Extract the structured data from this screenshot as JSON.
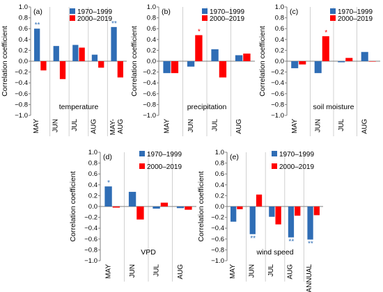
{
  "legend": {
    "series_a": "1970–1999",
    "series_b": "2000–2019"
  },
  "colors": {
    "series_a": "#2f6db5",
    "series_b": "#ff0000",
    "axis": "#7f7f7f",
    "grid": "#d0d0d0"
  },
  "shared_axis": {
    "ylabel": "Correlation coefficient",
    "yticks": [
      "−1.0",
      "−0.8",
      "−0.6",
      "−0.4",
      "−0.2",
      "0.0",
      "0.2",
      "0.4",
      "0.6",
      "0.8",
      "1.0"
    ],
    "ylim": [
      -1.0,
      1.0
    ]
  },
  "chart_data": [
    {
      "type": "bar",
      "panel_label": "(a)",
      "title": "temperature",
      "categories": [
        "MAY",
        "JUN",
        "JUL",
        "AUG",
        "MAY-\nAUG"
      ],
      "series": [
        {
          "name": "1970–1999",
          "values": [
            0.6,
            0.28,
            0.3,
            0.12,
            0.63
          ]
        },
        {
          "name": "2000–2019",
          "values": [
            -0.17,
            -0.33,
            0.25,
            -0.12,
            -0.3
          ]
        }
      ],
      "significance": [
        {
          "category": "MAY",
          "series": "1970–1999",
          "mark": "**"
        },
        {
          "category": "MAY-\nAUG",
          "series": "1970–1999",
          "mark": "**"
        }
      ],
      "legend_position": "top-right",
      "ylim": [
        -1.0,
        1.0
      ]
    },
    {
      "type": "bar",
      "panel_label": "(b)",
      "title": "precipitation",
      "categories": [
        "MAY",
        "JUN",
        "JUL",
        "AUG"
      ],
      "series": [
        {
          "name": "1970–1999",
          "values": [
            -0.22,
            -0.1,
            0.22,
            0.11
          ]
        },
        {
          "name": "2000–2019",
          "values": [
            -0.22,
            0.48,
            -0.3,
            0.14
          ]
        }
      ],
      "significance": [
        {
          "category": "JUN",
          "series": "2000–2019",
          "mark": "*"
        }
      ],
      "legend_position": "top-right",
      "ylim": [
        -1.0,
        1.0
      ]
    },
    {
      "type": "bar",
      "panel_label": "(c)",
      "title": "soil moisture",
      "categories": [
        "MAY",
        "JUN",
        "JUL",
        "AUG"
      ],
      "series": [
        {
          "name": "1970–1999",
          "values": [
            -0.13,
            -0.22,
            -0.02,
            0.17
          ]
        },
        {
          "name": "2000–2019",
          "values": [
            -0.06,
            0.46,
            0.06,
            0.0
          ]
        }
      ],
      "significance": [
        {
          "category": "JUN",
          "series": "2000–2019",
          "mark": "*"
        }
      ],
      "legend_position": "top-right",
      "ylim": [
        -1.0,
        1.0
      ]
    },
    {
      "type": "bar",
      "panel_label": "(d)",
      "title": "VPD",
      "categories": [
        "MAY",
        "JUN",
        "JUL",
        "AUG"
      ],
      "series": [
        {
          "name": "1970–1999",
          "values": [
            0.37,
            0.27,
            -0.04,
            -0.03
          ]
        },
        {
          "name": "2000–2019",
          "values": [
            -0.02,
            -0.24,
            0.07,
            -0.06
          ]
        }
      ],
      "significance": [
        {
          "category": "MAY",
          "series": "1970–1999",
          "mark": "*"
        }
      ],
      "legend_position": "top-right",
      "ylim": [
        -1.0,
        1.0
      ]
    },
    {
      "type": "bar",
      "panel_label": "(e)",
      "title": "wind speed",
      "categories": [
        "MAY",
        "JUN",
        "JUL",
        "AUG",
        "ANNUAL"
      ],
      "series": [
        {
          "name": "1970–1999",
          "values": [
            -0.28,
            -0.51,
            -0.19,
            -0.57,
            -0.61
          ]
        },
        {
          "name": "2000–2019",
          "values": [
            -0.05,
            0.22,
            -0.33,
            -0.17,
            -0.16
          ]
        }
      ],
      "significance": [
        {
          "category": "JUN",
          "series": "1970–1999",
          "mark": "**"
        },
        {
          "category": "AUG",
          "series": "1970–1999",
          "mark": "**"
        },
        {
          "category": "ANNUAL",
          "series": "1970–1999",
          "mark": "**"
        }
      ],
      "legend_position": "top-right",
      "ylim": [
        -1.0,
        1.0
      ]
    }
  ]
}
